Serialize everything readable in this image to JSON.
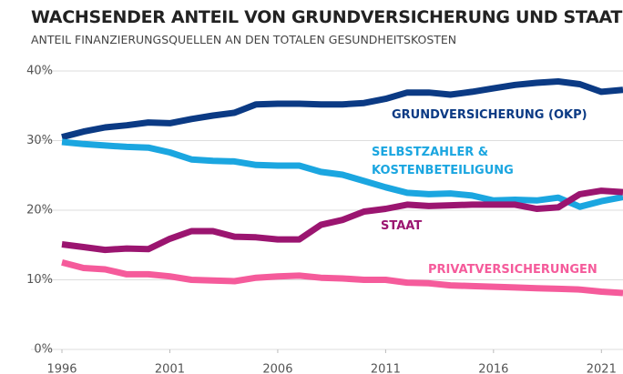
{
  "chart_data": {
    "type": "line",
    "title": "WACHSENDER ANTEIL VON GRUNDVERSICHERUNG UND STAAT",
    "subtitle": "ANTEIL FINANZIERUNGSQUELLEN AN DEN TOTALEN GESUNDHEITSKOSTEN",
    "x": [
      1996,
      1997,
      1998,
      1999,
      2000,
      2001,
      2002,
      2003,
      2004,
      2005,
      2006,
      2007,
      2008,
      2009,
      2010,
      2011,
      2012,
      2013,
      2014,
      2015,
      2016,
      2017,
      2018,
      2019,
      2020,
      2021,
      2022
    ],
    "series": [
      {
        "name": "GRUNDVERSICHERUNG (OKP)",
        "color": "#0b3a84",
        "values": [
          30.5,
          31.3,
          31.9,
          32.2,
          32.6,
          32.5,
          33.1,
          33.6,
          34.0,
          35.2,
          35.3,
          35.3,
          35.2,
          35.2,
          35.4,
          36.0,
          36.9,
          36.9,
          36.6,
          37.0,
          37.5,
          38.0,
          38.3,
          38.5,
          38.1,
          37.0,
          37.3
        ]
      },
      {
        "name": "SELBSTZAHLER & KOSTENBETEILIGUNG",
        "color": "#1ba6e0",
        "values": [
          29.8,
          29.5,
          29.3,
          29.1,
          29.0,
          28.3,
          27.3,
          27.1,
          27.0,
          26.5,
          26.4,
          26.4,
          25.5,
          25.1,
          24.2,
          23.3,
          22.5,
          22.3,
          22.4,
          22.1,
          21.4,
          21.5,
          21.4,
          21.8,
          20.5,
          21.3,
          21.9
        ]
      },
      {
        "name": "STAAT",
        "color": "#9b1570",
        "values": [
          15.1,
          14.7,
          14.3,
          14.5,
          14.4,
          15.9,
          17.0,
          17.0,
          16.2,
          16.1,
          15.8,
          15.8,
          17.9,
          18.6,
          19.8,
          20.2,
          20.8,
          20.6,
          20.7,
          20.8,
          20.8,
          20.8,
          20.2,
          20.4,
          22.3,
          22.8,
          22.6
        ]
      },
      {
        "name": "PRIVATVERSICHERUNGEN",
        "color": "#f55b9b",
        "values": [
          12.5,
          11.7,
          11.5,
          10.8,
          10.8,
          10.5,
          10.0,
          9.9,
          9.8,
          10.3,
          10.5,
          10.6,
          10.3,
          10.2,
          10.0,
          10.0,
          9.6,
          9.5,
          9.2,
          9.1,
          9.0,
          8.9,
          8.8,
          8.7,
          8.6,
          8.3,
          8.1
        ]
      }
    ],
    "xlim": [
      1996,
      2022
    ],
    "xticks": [
      1996,
      2001,
      2006,
      2011,
      2016,
      2021
    ],
    "ylim": [
      0,
      40
    ],
    "yticks": [
      {
        "value": 0,
        "label": "0%"
      },
      {
        "value": 10,
        "label": "10%"
      },
      {
        "value": 20,
        "label": "20%"
      },
      {
        "value": 30,
        "label": "30%"
      },
      {
        "value": 40,
        "label": "40%"
      }
    ],
    "grid": true
  }
}
